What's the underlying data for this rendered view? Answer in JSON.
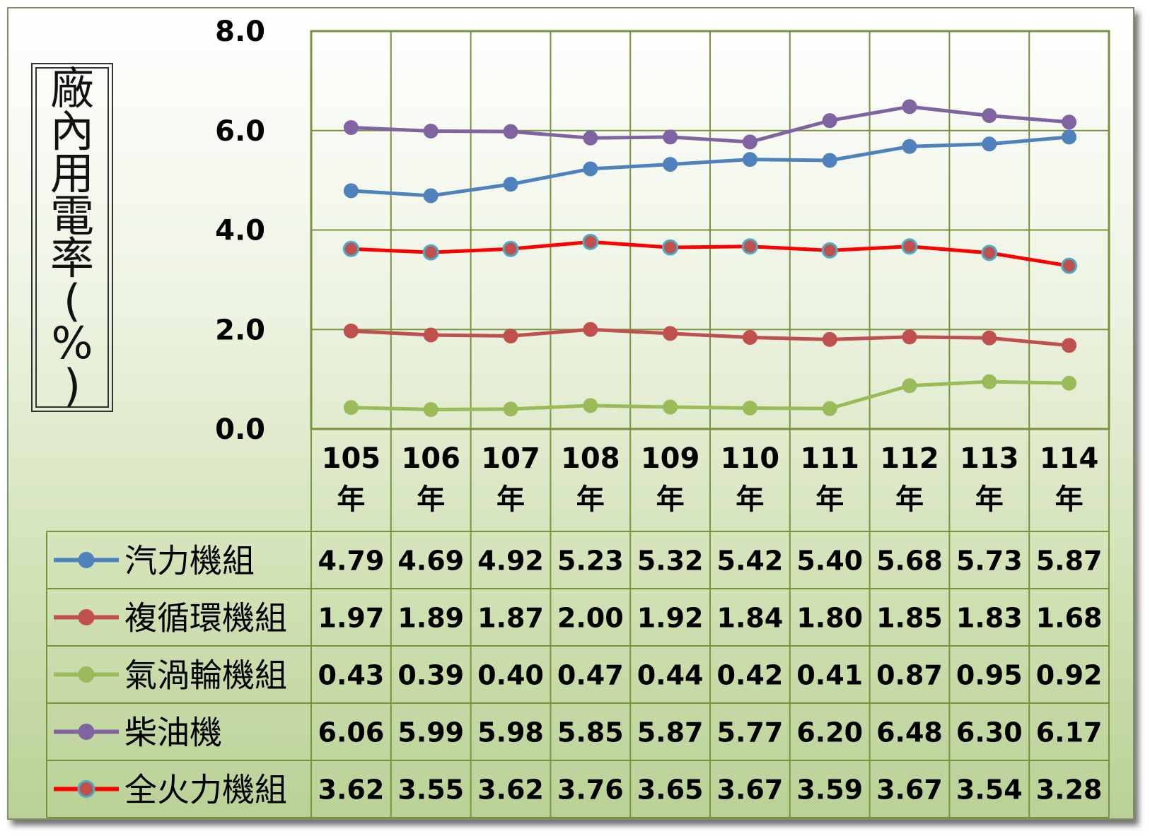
{
  "chart_data": {
    "type": "line",
    "ylabel": "廠內用電率(%)",
    "ylim": [
      0,
      8
    ],
    "yticks": [
      "0.0",
      "2.0",
      "4.0",
      "6.0",
      "8.0"
    ],
    "grid": true,
    "legend": "data-table-left",
    "categories": [
      "105\n年",
      "106\n年",
      "107\n年",
      "108\n年",
      "109\n年",
      "110\n年",
      "111\n年",
      "112\n年",
      "113\n年",
      "114\n年"
    ],
    "series": [
      {
        "name": "汽力機組",
        "color": "#4f81bd",
        "marker": "#4f81bd",
        "values": [
          4.79,
          4.69,
          4.92,
          5.23,
          5.32,
          5.42,
          5.4,
          5.68,
          5.73,
          5.87
        ],
        "labels": [
          "4.79",
          "4.69",
          "4.92",
          "5.23",
          "5.32",
          "5.42",
          "5.40",
          "5.68",
          "5.73",
          "5.87"
        ]
      },
      {
        "name": "複循環機組",
        "color": "#c0504d",
        "marker": "#c0504d",
        "values": [
          1.97,
          1.89,
          1.87,
          2.0,
          1.92,
          1.84,
          1.8,
          1.85,
          1.83,
          1.68
        ],
        "labels": [
          "1.97",
          "1.89",
          "1.87",
          "2.00",
          "1.92",
          "1.84",
          "1.80",
          "1.85",
          "1.83",
          "1.68"
        ]
      },
      {
        "name": "氣渦輪機組",
        "color": "#9bbb59",
        "marker": "#9bbb59",
        "values": [
          0.43,
          0.39,
          0.4,
          0.47,
          0.44,
          0.42,
          0.41,
          0.87,
          0.95,
          0.92
        ],
        "labels": [
          "0.43",
          "0.39",
          "0.40",
          "0.47",
          "0.44",
          "0.42",
          "0.41",
          "0.87",
          "0.95",
          "0.92"
        ]
      },
      {
        "name": "柴油機",
        "color": "#8064a2",
        "marker": "#8064a2",
        "values": [
          6.06,
          5.99,
          5.98,
          5.85,
          5.87,
          5.77,
          6.2,
          6.48,
          6.3,
          6.17
        ],
        "labels": [
          "6.06",
          "5.99",
          "5.98",
          "5.85",
          "5.87",
          "5.77",
          "6.20",
          "6.48",
          "6.30",
          "6.17"
        ]
      },
      {
        "name": "全火力機組",
        "color": "#ff0000",
        "marker": "#c0504d",
        "marker_edge": "#4bacc6",
        "values": [
          3.62,
          3.55,
          3.62,
          3.76,
          3.65,
          3.67,
          3.59,
          3.67,
          3.54,
          3.28
        ],
        "labels": [
          "3.62",
          "3.55",
          "3.62",
          "3.76",
          "3.65",
          "3.67",
          "3.59",
          "3.67",
          "3.54",
          "3.28"
        ]
      }
    ],
    "colors": {
      "grid": "#77933c",
      "plot_border": "#77933c",
      "table_border": "#77933c"
    }
  }
}
